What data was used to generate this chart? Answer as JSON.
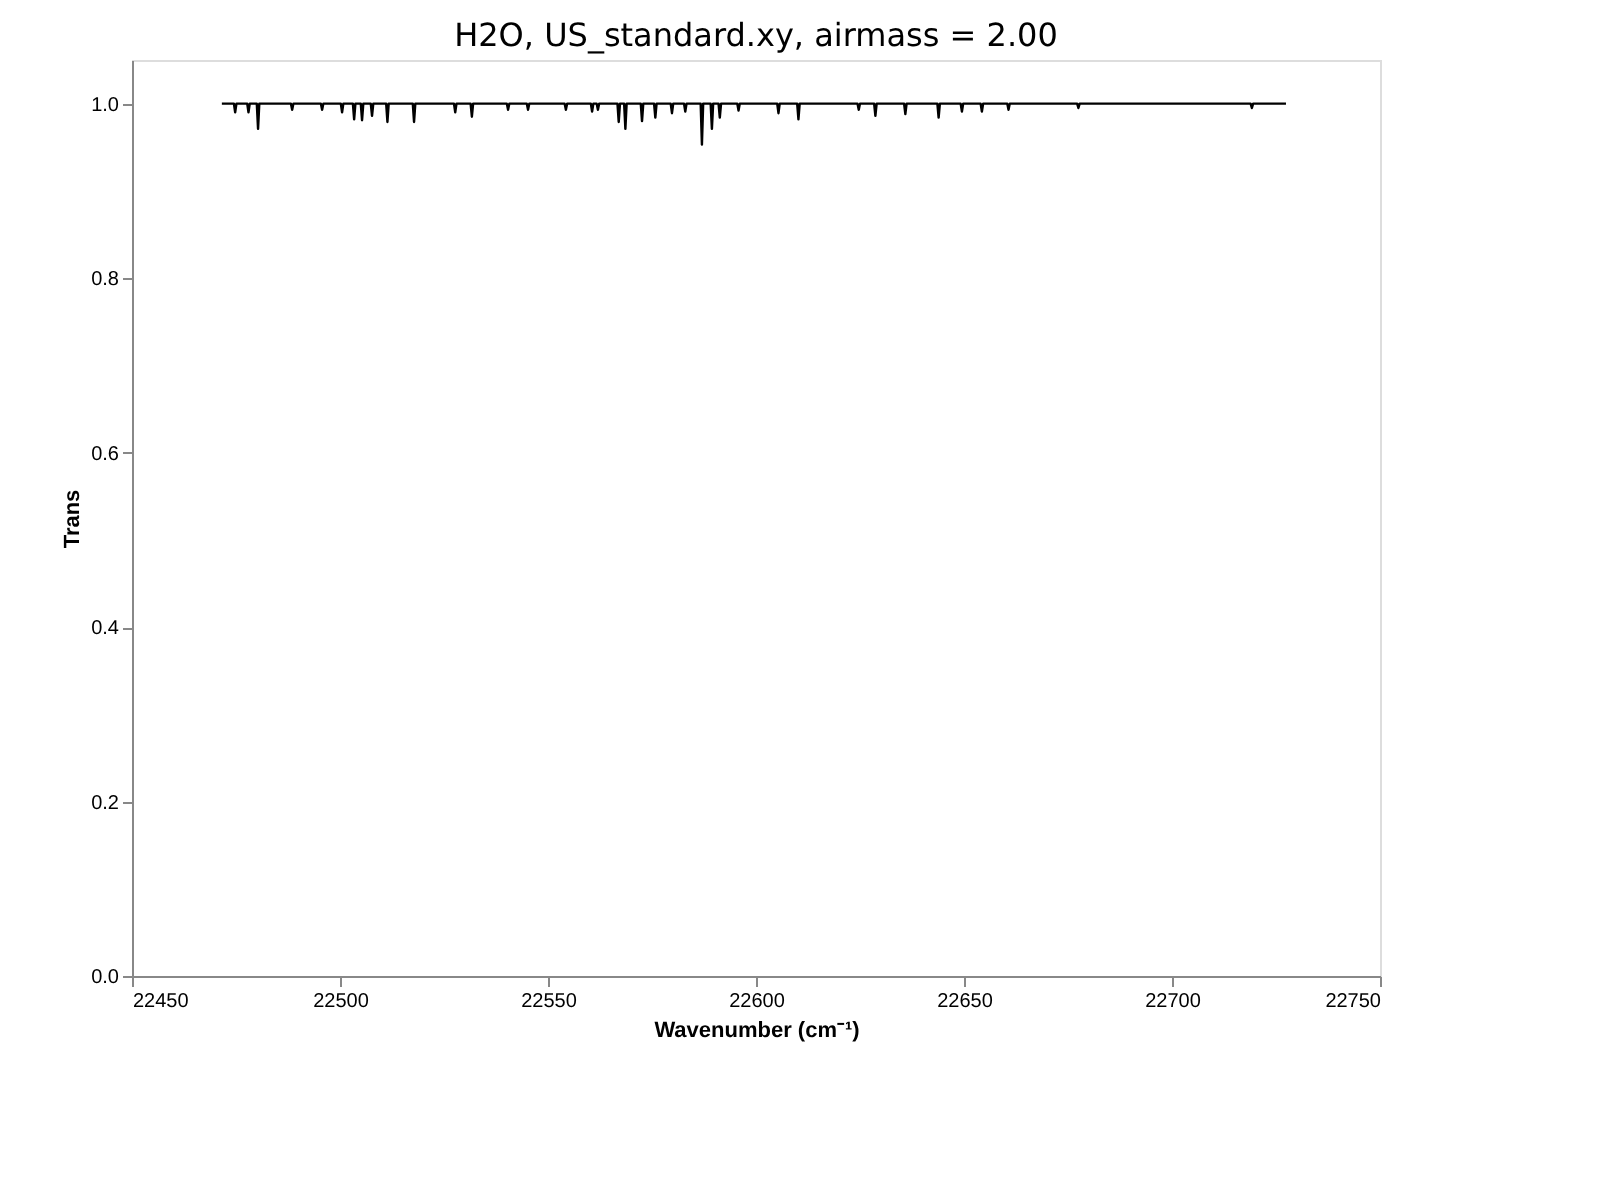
{
  "chart_data": {
    "type": "line",
    "title": "H2O, US_standard.xy, airmass = 2.00",
    "xlabel": "Wavenumber (cm⁻¹)",
    "ylabel": "Trans",
    "xlim": [
      22450,
      22750
    ],
    "xticks": [
      22450,
      22500,
      22550,
      22600,
      22650,
      22700,
      22750
    ],
    "ylim": [
      0,
      1.05
    ],
    "yticks": [
      {
        "value": 0,
        "label": "0.0"
      },
      {
        "value": 0.2,
        "label": "0.2"
      },
      {
        "value": 0.4,
        "label": "0.4"
      },
      {
        "value": 0.6,
        "label": "0.6"
      },
      {
        "value": 0.8,
        "label": "0.8"
      },
      {
        "value": 1.0,
        "label": "1.0"
      }
    ],
    "grid": false,
    "legend": false,
    "marker": "none",
    "line_style": "solid",
    "series": [
      {
        "color": "#000000",
        "x": [
          22471.6,
          22474.5,
          22474.8,
          22475.1,
          22477.7,
          22478.0,
          22478.3,
          22480.0,
          22480.3,
          22480.6,
          22488.2,
          22488.5,
          22488.8,
          22495.4,
          22495.7,
          22496.0,
          22500.2,
          22500.5,
          22500.8,
          22503.1,
          22503.4,
          22503.7,
          22505.0,
          22505.3,
          22505.6,
          22507.4,
          22507.7,
          22508.0,
          22511.1,
          22511.4,
          22511.7,
          22517.5,
          22517.8,
          22518.1,
          22527.4,
          22527.7,
          22528.0,
          22531.4,
          22531.7,
          22532.0,
          22540.1,
          22540.4,
          22540.7,
          22544.9,
          22545.2,
          22545.5,
          22554.0,
          22554.3,
          22554.6,
          22560.3,
          22560.6,
          22560.9,
          22561.7,
          22562.0,
          22562.3,
          22566.7,
          22567.0,
          22567.3,
          22568.3,
          22568.6,
          22568.9,
          22572.3,
          22572.6,
          22572.9,
          22575.5,
          22575.8,
          22576.1,
          22579.5,
          22579.8,
          22580.1,
          22582.7,
          22583.0,
          22583.3,
          22586.7,
          22587.0,
          22587.3,
          22589.1,
          22589.4,
          22589.7,
          22591.0,
          22591.3,
          22591.6,
          22595.5,
          22595.8,
          22596.1,
          22605.1,
          22605.4,
          22605.7,
          22609.9,
          22610.2,
          22610.5,
          22624.4,
          22624.7,
          22625.0,
          22628.4,
          22628.7,
          22629.0,
          22635.6,
          22635.9,
          22636.2,
          22643.6,
          22643.9,
          22644.2,
          22649.2,
          22649.5,
          22649.8,
          22654.0,
          22654.3,
          22654.6,
          22660.4,
          22660.7,
          22661.0,
          22677.2,
          22677.5,
          22677.8,
          22718.9,
          22719.2,
          22719.5,
          22727.4
        ],
        "values": [
          1.0,
          1.0,
          0.99,
          1.0,
          1.0,
          0.99,
          1.0,
          1.0,
          0.971,
          1.0,
          1.0,
          0.993,
          1.0,
          1.0,
          0.993,
          1.0,
          1.0,
          0.99,
          1.0,
          1.0,
          0.982,
          1.0,
          1.0,
          0.981,
          1.0,
          1.0,
          0.986,
          1.0,
          1.0,
          0.979,
          1.0,
          1.0,
          0.979,
          1.0,
          1.0,
          0.99,
          1.0,
          1.0,
          0.985,
          1.0,
          1.0,
          0.993,
          1.0,
          1.0,
          0.993,
          1.0,
          1.0,
          0.993,
          1.0,
          1.0,
          0.991,
          1.0,
          1.0,
          0.993,
          1.0,
          1.0,
          0.979,
          1.0,
          1.0,
          0.971,
          1.0,
          1.0,
          0.98,
          1.0,
          1.0,
          0.984,
          1.0,
          1.0,
          0.989,
          1.0,
          1.0,
          0.991,
          1.0,
          1.0,
          0.953,
          1.0,
          1.0,
          0.971,
          1.0,
          1.0,
          0.984,
          1.0,
          1.0,
          0.992,
          1.0,
          1.0,
          0.989,
          1.0,
          1.0,
          0.982,
          1.0,
          1.0,
          0.993,
          1.0,
          1.0,
          0.986,
          1.0,
          1.0,
          0.988,
          1.0,
          1.0,
          0.984,
          1.0,
          1.0,
          0.991,
          1.0,
          1.0,
          0.991,
          1.0,
          1.0,
          0.993,
          1.0,
          1.0,
          0.995,
          1.0,
          1.0,
          0.995,
          1.0,
          1.0
        ]
      }
    ]
  }
}
